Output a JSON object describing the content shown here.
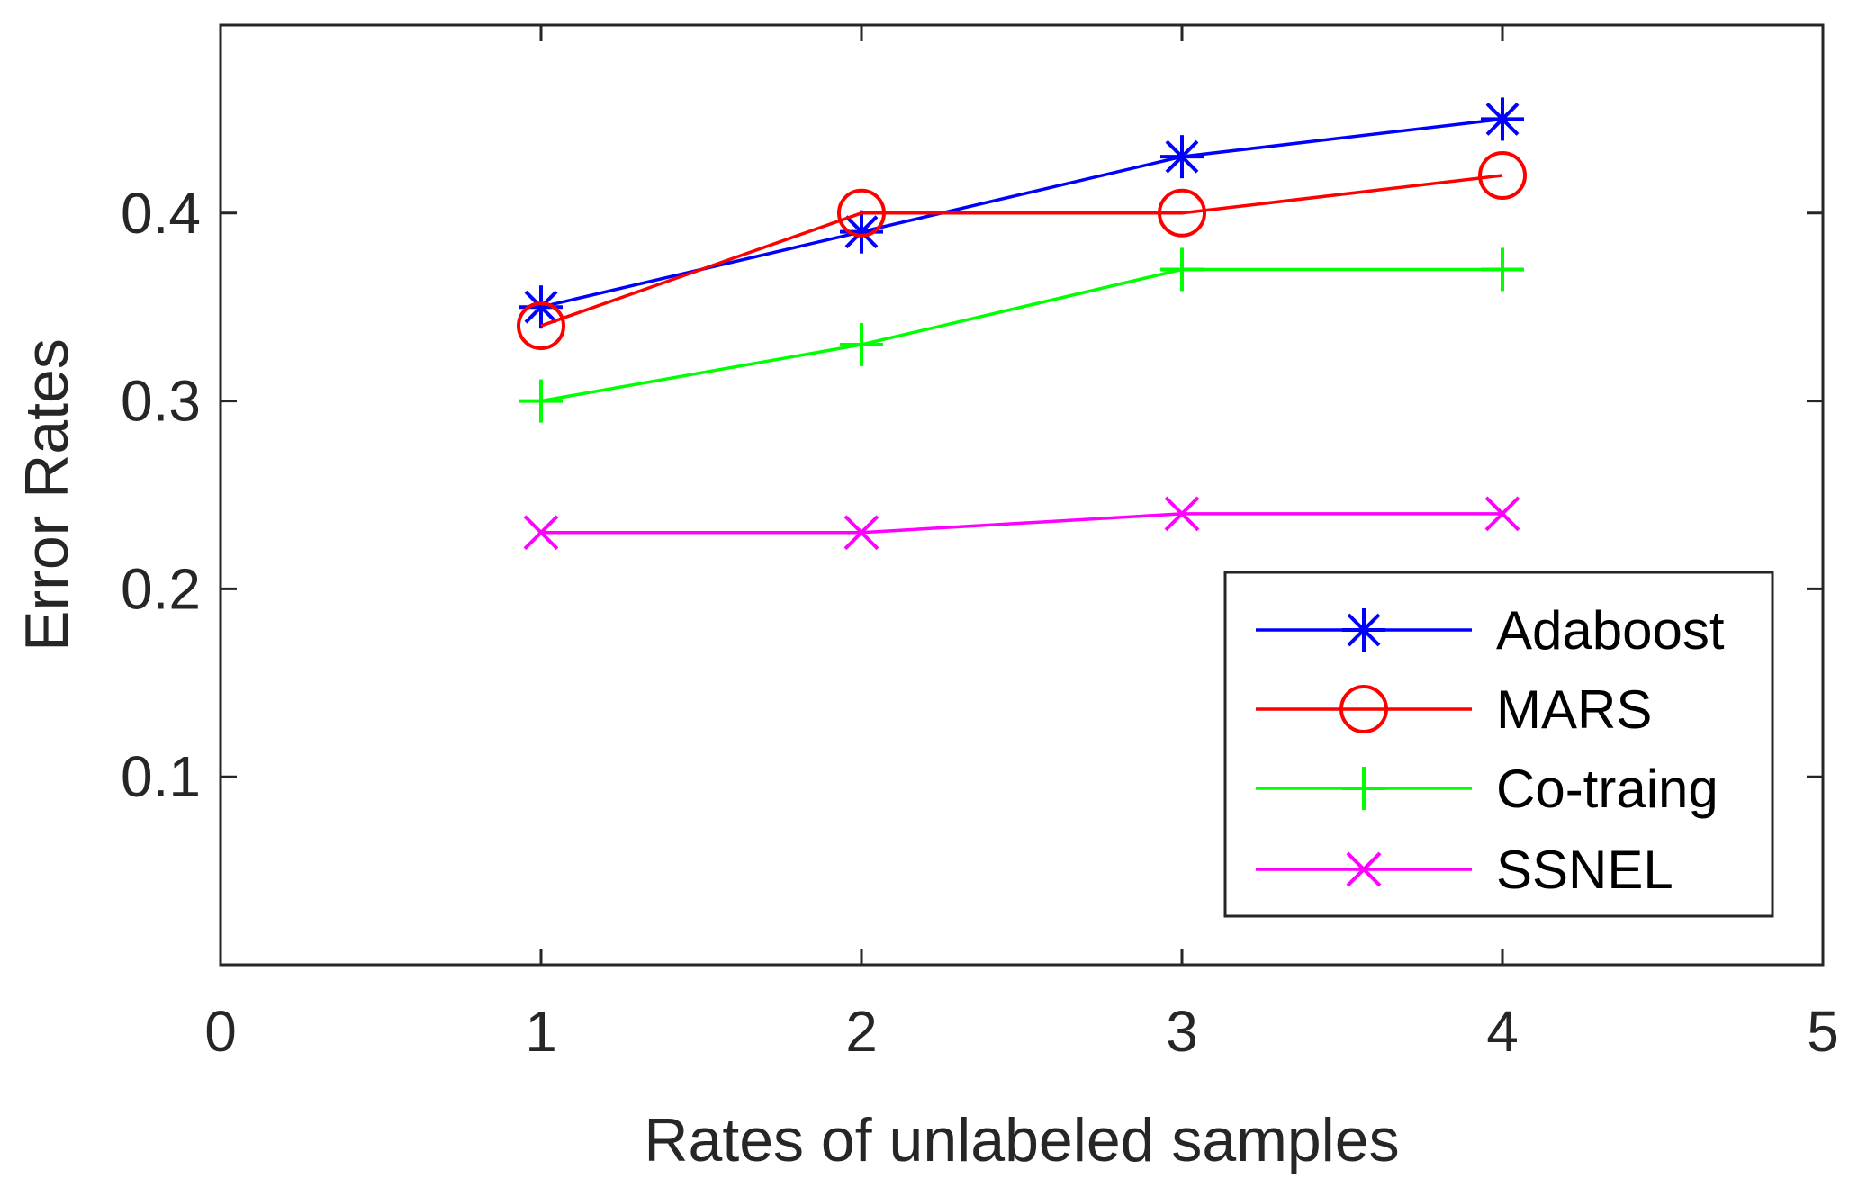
{
  "chart_data": {
    "type": "line",
    "title": "",
    "xlabel": "Rates of unlabeled samples",
    "ylabel": "Error Rates",
    "xlim": [
      0,
      5
    ],
    "ylim": [
      0,
      0.5
    ],
    "xticks": [
      0,
      1,
      2,
      3,
      4,
      5
    ],
    "xtick_labels": [
      "0",
      "1",
      "2",
      "3",
      "4",
      "5"
    ],
    "yticks": [
      0.1,
      0.2,
      0.3,
      0.4
    ],
    "ytick_labels": [
      "0.1",
      "0.2",
      "0.3",
      "0.4"
    ],
    "grid": false,
    "legend_position": "bottom-right",
    "x": [
      1,
      2,
      3,
      4
    ],
    "series": [
      {
        "name": "Adaboost",
        "values": [
          0.35,
          0.39,
          0.43,
          0.45
        ],
        "color": "#0000FF",
        "marker": "asterisk"
      },
      {
        "name": "MARS",
        "values": [
          0.34,
          0.4,
          0.4,
          0.42
        ],
        "color": "#FF0000",
        "marker": "circle"
      },
      {
        "name": "Co-traing",
        "values": [
          0.3,
          0.33,
          0.37,
          0.37
        ],
        "color": "#00FF00",
        "marker": "plus"
      },
      {
        "name": "SSNEL",
        "values": [
          0.23,
          0.23,
          0.24,
          0.24
        ],
        "color": "#FF00FF",
        "marker": "x"
      }
    ]
  }
}
